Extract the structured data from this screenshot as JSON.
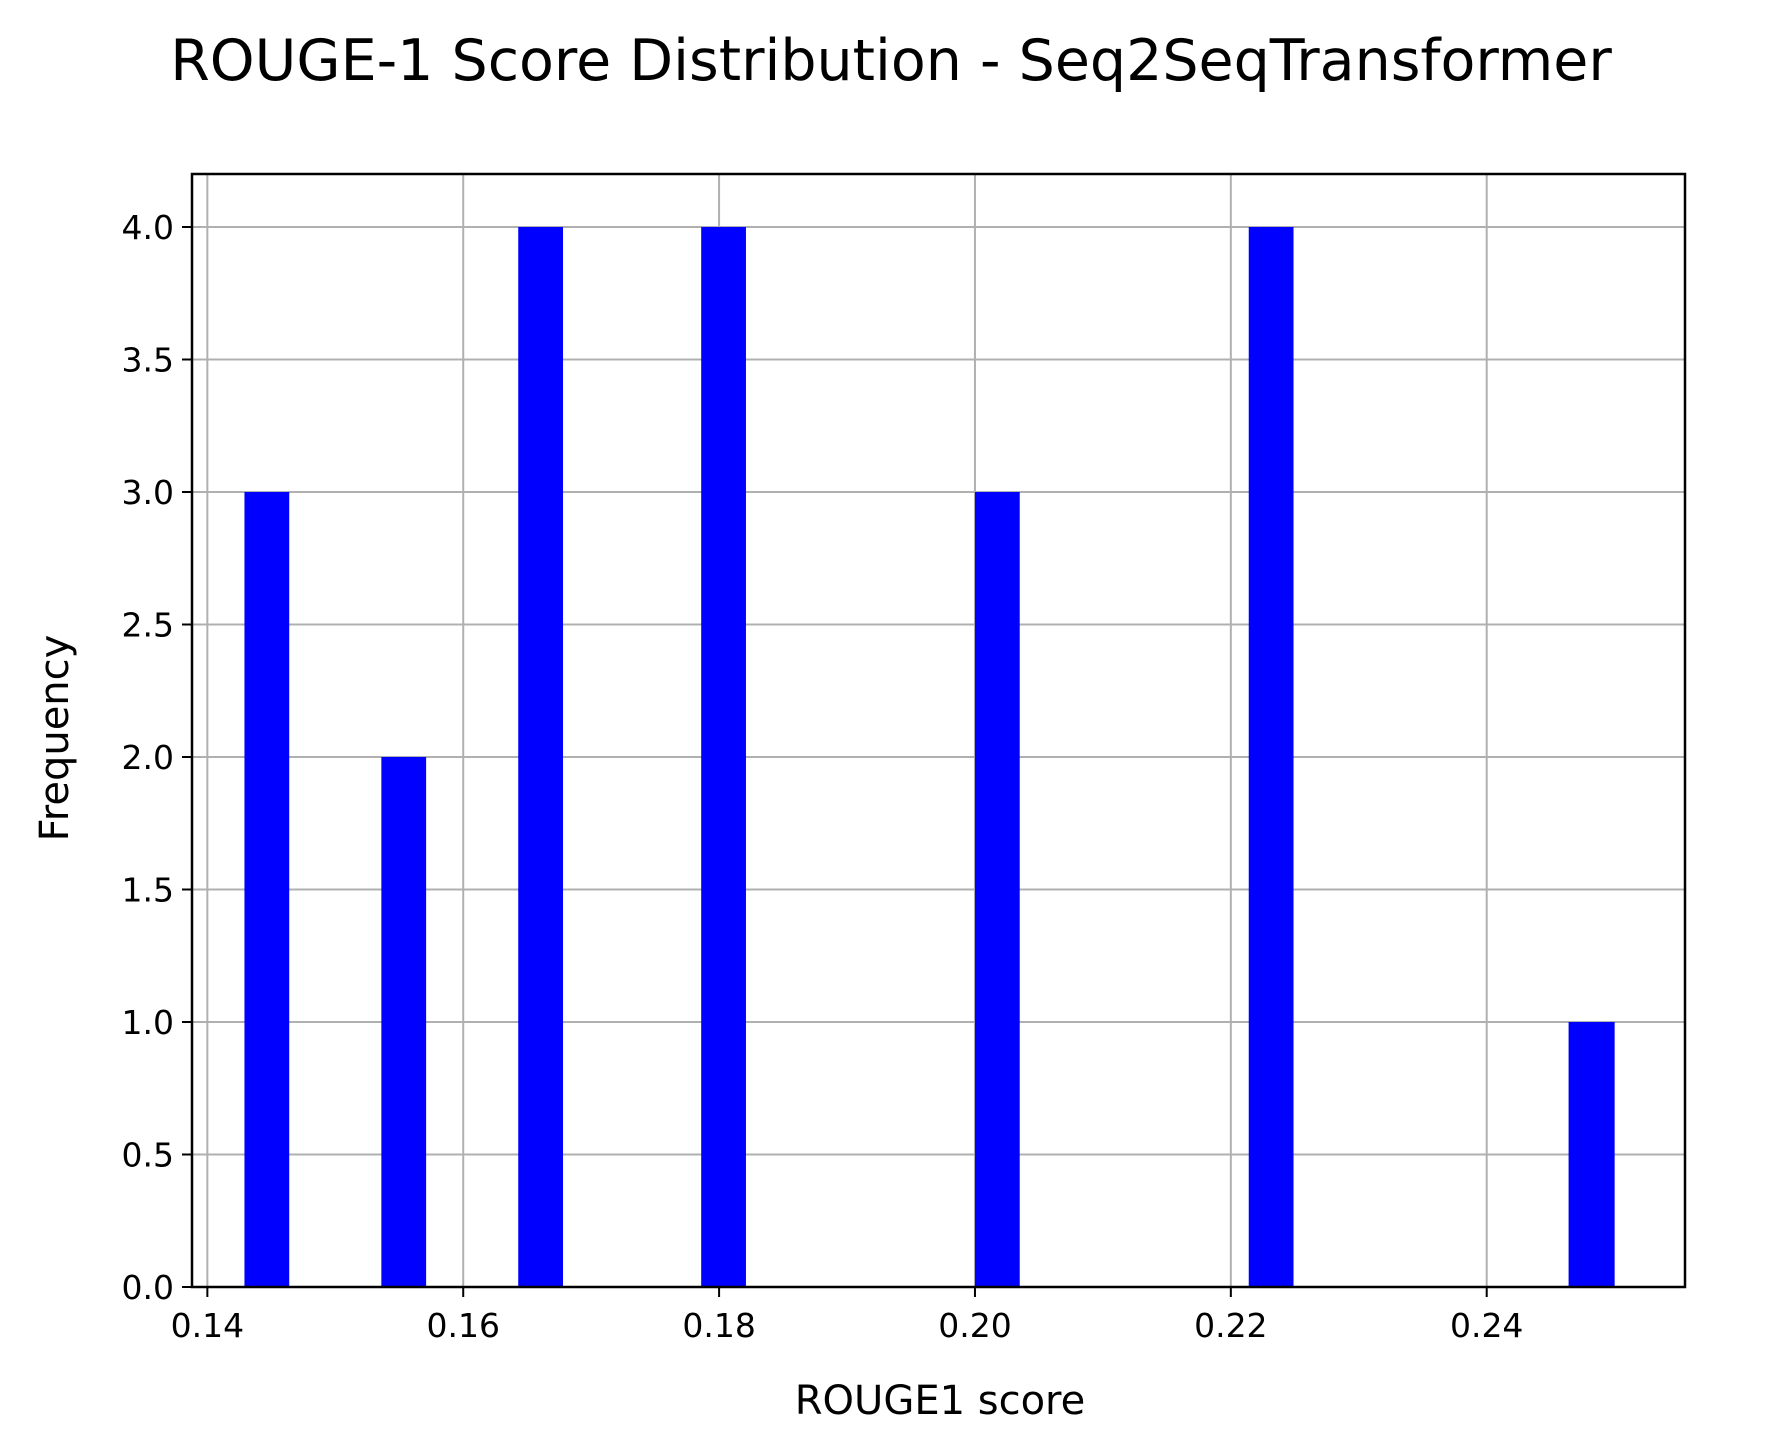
{
  "chart_data": {
    "type": "bar",
    "title": "ROUGE-1 Score Distribution - Seq2SeqTransformer",
    "xlabel": "ROUGE1 score",
    "ylabel": "Frequency",
    "xlim": [
      0.1388,
      0.2555
    ],
    "ylim": [
      0,
      4.2
    ],
    "grid": true,
    "bar_color": "#0000ff",
    "bin_width": 0.0035,
    "bins": [
      {
        "x_start": 0.1429,
        "x_end": 0.1464,
        "value": 3
      },
      {
        "x_start": 0.1536,
        "x_end": 0.1571,
        "value": 2
      },
      {
        "x_start": 0.1643,
        "x_end": 0.1678,
        "value": 4
      },
      {
        "x_start": 0.1786,
        "x_end": 0.1821,
        "value": 4
      },
      {
        "x_start": 0.2,
        "x_end": 0.2035,
        "value": 3
      },
      {
        "x_start": 0.2214,
        "x_end": 0.2249,
        "value": 4
      },
      {
        "x_start": 0.2464,
        "x_end": 0.25,
        "value": 1
      }
    ],
    "xticks": [
      0.14,
      0.16,
      0.18,
      0.2,
      0.22,
      0.24
    ],
    "xtick_labels": [
      "0.14",
      "0.16",
      "0.18",
      "0.20",
      "0.22",
      "0.24"
    ],
    "yticks": [
      0,
      0.5,
      1,
      1.5,
      2,
      2.5,
      3,
      3.5,
      4
    ],
    "ytick_labels": [
      "0.0",
      "0.5",
      "1.0",
      "1.5",
      "2.0",
      "2.5",
      "3.0",
      "3.5",
      "4.0"
    ]
  }
}
